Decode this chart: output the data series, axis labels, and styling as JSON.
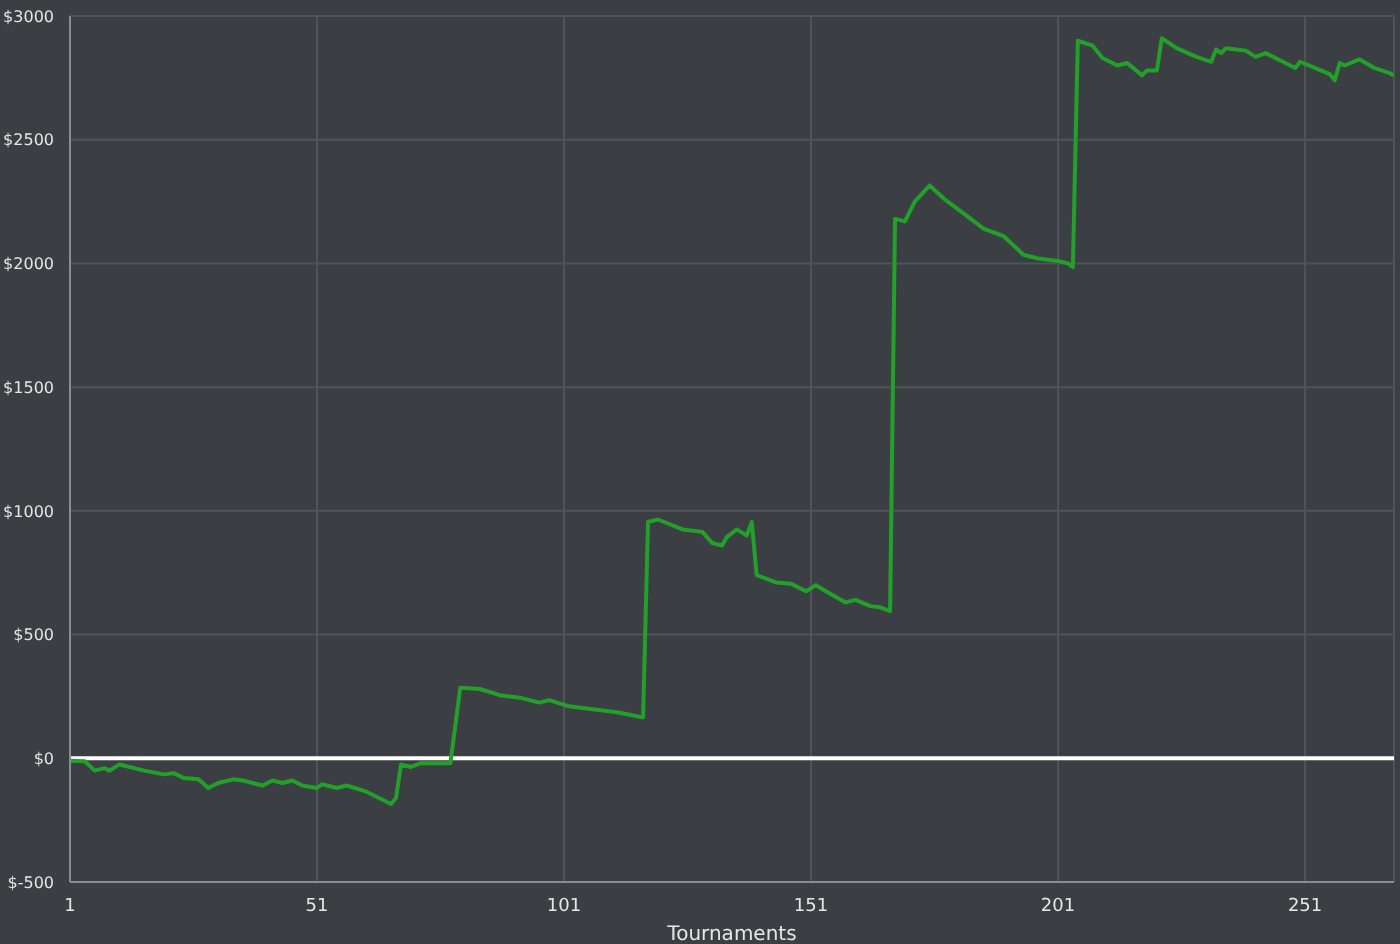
{
  "chart_data": {
    "type": "line",
    "xlabel": "Tournaments",
    "x": [
      1,
      4,
      6,
      8,
      9,
      11,
      16,
      20,
      22,
      24,
      27,
      29,
      31,
      34,
      36,
      40,
      42,
      44,
      46,
      48,
      51,
      52,
      55,
      57,
      61,
      66,
      67,
      68,
      70,
      72,
      78,
      80,
      84,
      88,
      92,
      96,
      98,
      102,
      106,
      112,
      117,
      118,
      120,
      125,
      129,
      131,
      133,
      134,
      136,
      138,
      139,
      140,
      144,
      147,
      150,
      152,
      154,
      158,
      160,
      163,
      165,
      167,
      168,
      170,
      172,
      175,
      178,
      182,
      186,
      190,
      194,
      197,
      201,
      203,
      204,
      205,
      208,
      210,
      213,
      215,
      218,
      219,
      221,
      222,
      225,
      229,
      232,
      233,
      234,
      235,
      239,
      241,
      243,
      249,
      250,
      256,
      257,
      258,
      259,
      262,
      265,
      268,
      269
    ],
    "series": [
      {
        "color": "#22a02a",
        "values": [
          -10,
          -12,
          -50,
          -40,
          -50,
          -25,
          -50,
          -65,
          -60,
          -80,
          -85,
          -120,
          -100,
          -85,
          -90,
          -110,
          -90,
          -100,
          -90,
          -110,
          -120,
          -105,
          -120,
          -110,
          -135,
          -185,
          -160,
          -25,
          -35,
          -20,
          -20,
          285,
          280,
          255,
          245,
          225,
          235,
          210,
          200,
          185,
          165,
          955,
          965,
          925,
          915,
          870,
          860,
          895,
          925,
          900,
          955,
          740,
          710,
          705,
          675,
          700,
          675,
          630,
          640,
          615,
          610,
          595,
          2180,
          2170,
          2250,
          2315,
          2260,
          2200,
          2140,
          2110,
          2035,
          2020,
          2010,
          2000,
          1985,
          2900,
          2880,
          2830,
          2800,
          2810,
          2760,
          2780,
          2780,
          2910,
          2870,
          2835,
          2815,
          2865,
          2850,
          2870,
          2860,
          2835,
          2850,
          2790,
          2815,
          2765,
          2740,
          2810,
          2800,
          2825,
          2790,
          2770,
          2760
        ]
      }
    ],
    "xlim": [
      1,
      269
    ],
    "xticks": [
      1,
      51,
      101,
      151,
      201,
      251
    ],
    "ylim": [
      -500,
      3000
    ],
    "yticks": [
      {
        "value": -500,
        "label": "$-500"
      },
      {
        "value": 0,
        "label": "$0"
      },
      {
        "value": 500,
        "label": "$500"
      },
      {
        "value": 1000,
        "label": "$1000"
      },
      {
        "value": 1500,
        "label": "$1500"
      },
      {
        "value": 2000,
        "label": "$2000"
      },
      {
        "value": 2500,
        "label": "$2500"
      },
      {
        "value": 3000,
        "label": "$3000"
      }
    ],
    "grid": true,
    "marker": "none",
    "line_style": "solid",
    "ref_lines": [
      {
        "axis": "y",
        "value": 0,
        "color": "#ffffff"
      }
    ]
  }
}
